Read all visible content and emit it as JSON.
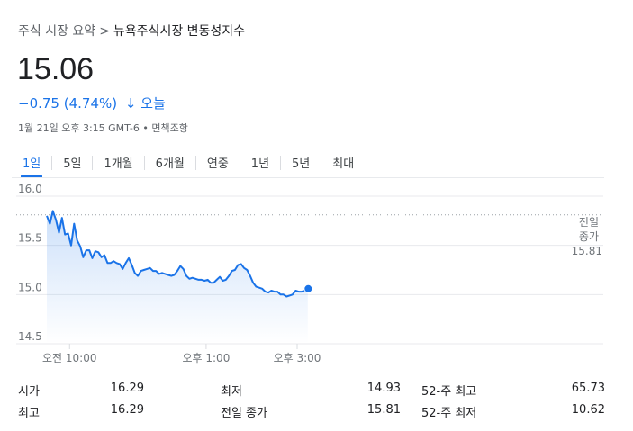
{
  "breadcrumb": {
    "parent": "주식 시장 요약",
    "separator": ">",
    "current": "뉴욕주식시장 변동성지수"
  },
  "price": "15.06",
  "change": {
    "text": "−0.75 (4.74%)",
    "arrow": "↓",
    "period": "오늘"
  },
  "timestamp": {
    "text": "1월 21일 오후 3:15 GMT-6 •",
    "disclaimer": "면책조항"
  },
  "tabs": [
    {
      "label": "1일",
      "active": true
    },
    {
      "label": "5일",
      "active": false
    },
    {
      "label": "1개월",
      "active": false
    },
    {
      "label": "6개월",
      "active": false
    },
    {
      "label": "연중",
      "active": false
    },
    {
      "label": "1년",
      "active": false
    },
    {
      "label": "5년",
      "active": false
    },
    {
      "label": "최대",
      "active": false
    }
  ],
  "chart_data": {
    "type": "line",
    "title": "",
    "xlabel": "",
    "ylabel": "",
    "ylim": [
      14.5,
      16.0
    ],
    "y_ticks": [
      "16.0",
      "15.5",
      "15.0",
      "14.5"
    ],
    "x_ticks": [
      {
        "label": "오전 10:00",
        "minute": 30
      },
      {
        "label": "오후 1:00",
        "minute": 210
      },
      {
        "label": "오후 3:00",
        "minute": 330
      }
    ],
    "reference_line": {
      "label_line1": "전일",
      "label_line2": "종가",
      "value_label": "15.81",
      "value": 15.81
    },
    "series": [
      {
        "color": "#1a73e8",
        "x": [
          0,
          4,
          8,
          12,
          16,
          20,
          24,
          28,
          32,
          36,
          40,
          44,
          48,
          52,
          56,
          60,
          64,
          68,
          72,
          76,
          80,
          84,
          88,
          92,
          96,
          100,
          104,
          108,
          112,
          116,
          120,
          124,
          128,
          132,
          136,
          140,
          144,
          148,
          152,
          156,
          160,
          164,
          168,
          172,
          176,
          180,
          184,
          188,
          192,
          196,
          200,
          204,
          208,
          212,
          216,
          220,
          224,
          228,
          232,
          236,
          240,
          244,
          248,
          252,
          256,
          260,
          264,
          268,
          272,
          276,
          280,
          284,
          288,
          292,
          296,
          300,
          304,
          308,
          312,
          316,
          320,
          324,
          328,
          332,
          336,
          340,
          344
        ],
        "values": [
          15.8,
          15.72,
          15.85,
          15.76,
          15.63,
          15.78,
          15.61,
          15.62,
          15.5,
          15.72,
          15.55,
          15.49,
          15.38,
          15.45,
          15.45,
          15.37,
          15.44,
          15.43,
          15.38,
          15.4,
          15.32,
          15.32,
          15.34,
          15.32,
          15.31,
          15.26,
          15.32,
          15.37,
          15.3,
          15.22,
          15.19,
          15.24,
          15.25,
          15.26,
          15.27,
          15.24,
          15.24,
          15.21,
          15.22,
          15.21,
          15.2,
          15.19,
          15.2,
          15.24,
          15.29,
          15.26,
          15.19,
          15.16,
          15.17,
          15.16,
          15.15,
          15.15,
          15.14,
          15.15,
          15.12,
          15.12,
          15.15,
          15.18,
          15.14,
          15.15,
          15.19,
          15.24,
          15.25,
          15.3,
          15.31,
          15.27,
          15.25,
          15.19,
          15.12,
          15.08,
          15.07,
          15.06,
          15.03,
          15.02,
          15.04,
          15.03,
          15.03,
          15.0,
          15.0,
          14.98,
          14.99,
          15.0,
          15.04,
          15.03,
          15.03,
          15.04,
          15.06
        ]
      }
    ]
  },
  "stats": [
    {
      "label": "시가",
      "value": "16.29"
    },
    {
      "label": "최저",
      "value": "14.93"
    },
    {
      "label": "52-주 최고",
      "value": "65.73"
    },
    {
      "label": "최고",
      "value": "16.29"
    },
    {
      "label": "전일 종가",
      "value": "15.81"
    },
    {
      "label": "52-주 최저",
      "value": "10.62"
    }
  ],
  "colors": {
    "accent": "#1a73e8",
    "muted": "#5f6368",
    "grid": "#e8eaed"
  }
}
